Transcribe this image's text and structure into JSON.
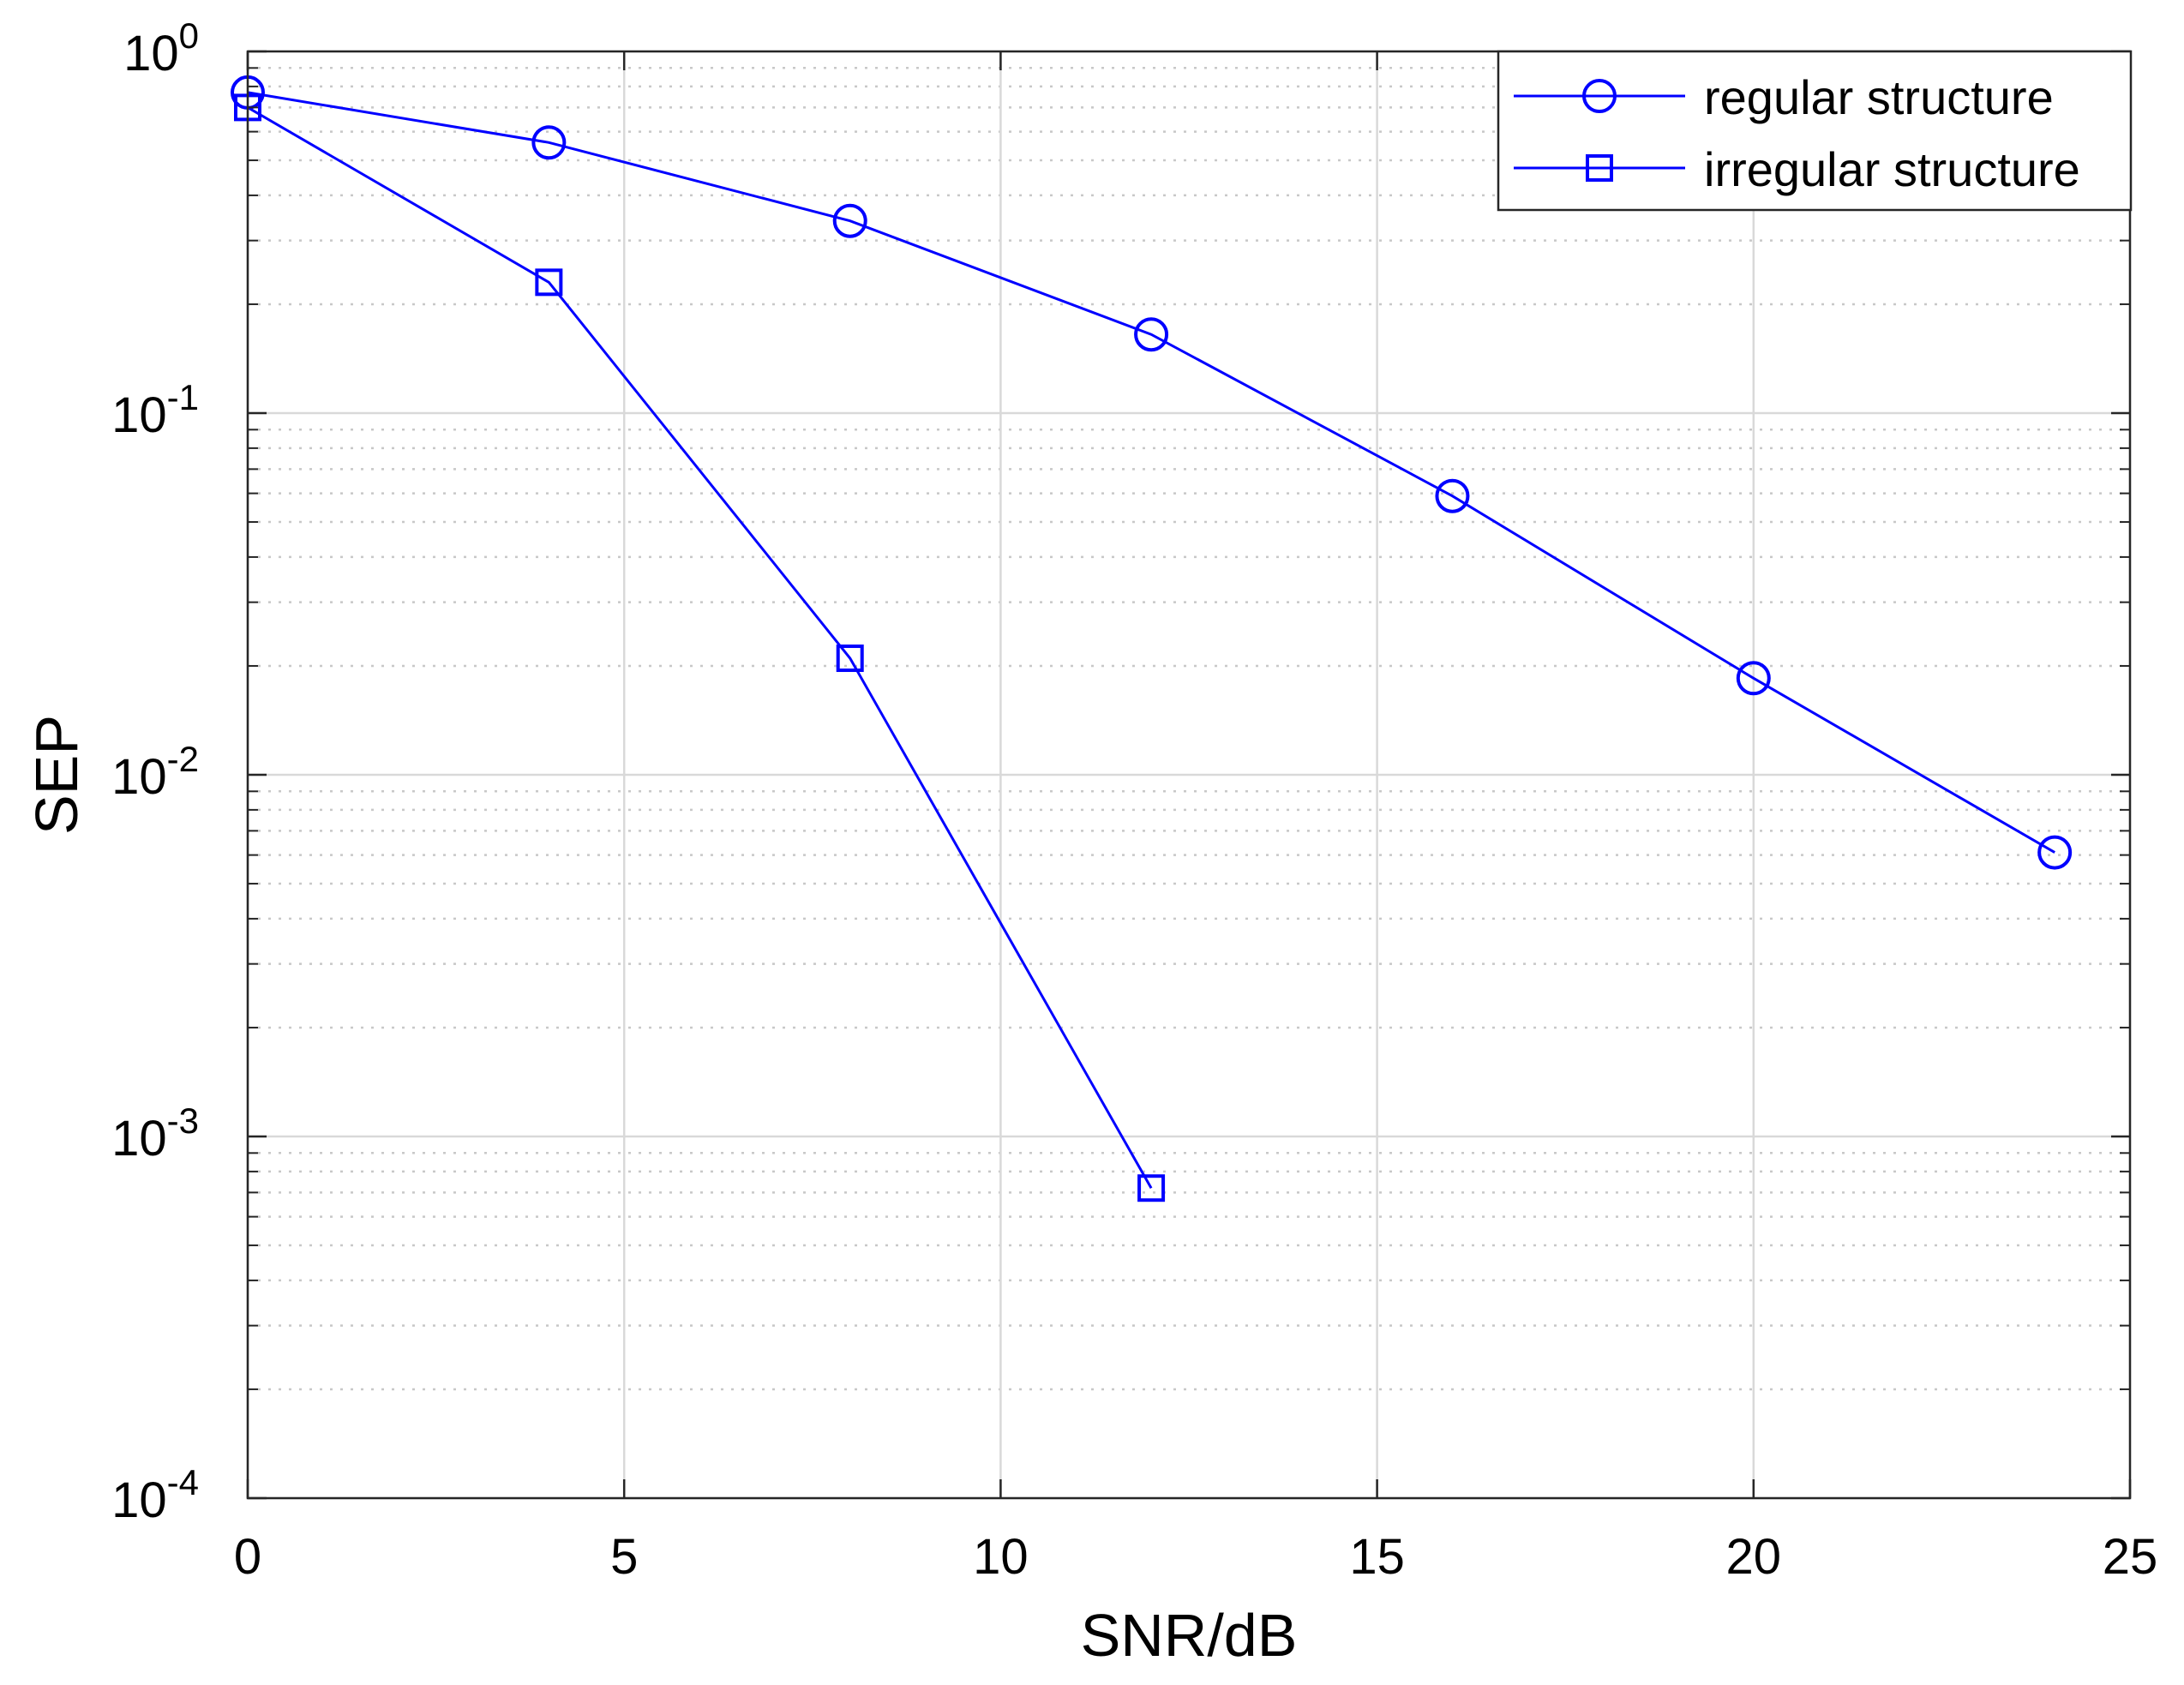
{
  "chart_data": {
    "type": "line",
    "title": "",
    "xlabel": "SNR/dB",
    "ylabel": "SEP",
    "xscale": "linear",
    "yscale": "log",
    "xlim": [
      0,
      25
    ],
    "ylim": [
      0.0001,
      1
    ],
    "x_ticks": [
      0,
      5,
      10,
      15,
      20,
      25
    ],
    "x_tick_labels": [
      "0",
      "5",
      "10",
      "15",
      "20",
      "25"
    ],
    "y_ticks": [
      {
        "value": 0.0001,
        "base": "10",
        "exp": "-4"
      },
      {
        "value": 0.001,
        "base": "10",
        "exp": "-3"
      },
      {
        "value": 0.01,
        "base": "10",
        "exp": "-2"
      },
      {
        "value": 0.1,
        "base": "10",
        "exp": "-1"
      },
      {
        "value": 1,
        "base": "10",
        "exp": "0"
      }
    ],
    "grid": true,
    "minor_grid": true,
    "legend_position": "top-right",
    "series": [
      {
        "name": "regular structure",
        "marker": "circle",
        "color": "#0000ff",
        "x": [
          0,
          4,
          8,
          12,
          16,
          20,
          24
        ],
        "y": [
          0.77,
          0.56,
          0.34,
          0.165,
          0.059,
          0.0185,
          0.0061
        ]
      },
      {
        "name": "irregular structure",
        "marker": "square",
        "color": "#0000ff",
        "x": [
          0,
          4,
          8,
          12
        ],
        "y": [
          0.7,
          0.23,
          0.021,
          0.00072
        ]
      }
    ]
  }
}
